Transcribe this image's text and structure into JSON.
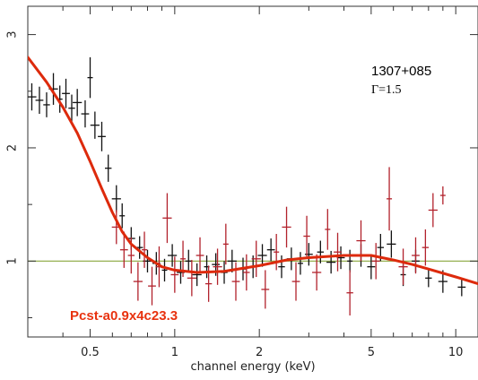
{
  "chart_data": {
    "type": "line",
    "title": "",
    "xlabel": "channel energy (keV)",
    "ylabel": "",
    "xscale": "log",
    "xlim": [
      0.3,
      12
    ],
    "ylim": [
      0.33,
      3.25
    ],
    "x_ticks": [
      {
        "value": 0.5,
        "label": "0.5"
      },
      {
        "value": 1,
        "label": "1"
      },
      {
        "value": 2,
        "label": "2"
      },
      {
        "value": 5,
        "label": "5"
      },
      {
        "value": 10,
        "label": "10"
      }
    ],
    "y_ticks": [
      {
        "value": 1,
        "label": "1"
      },
      {
        "value": 2,
        "label": "2"
      },
      {
        "value": 3,
        "label": "3"
      }
    ],
    "grid": false,
    "annotations": {
      "source": "1307+085",
      "gamma": "Γ=1.5",
      "model": "Pcst-a0.9x4c23.3"
    },
    "colors": {
      "model": "#dd2a0c",
      "reference": "#8aa63c",
      "data_black": "#111111",
      "data_red": "#b2222c"
    },
    "series": [
      {
        "type": "reference_line",
        "y": 1.0,
        "color": "#8aa63c"
      },
      {
        "type": "model_curve",
        "color": "#dd2a0c",
        "x": [
          0.3,
          0.35,
          0.4,
          0.45,
          0.5,
          0.55,
          0.6,
          0.65,
          0.7,
          0.8,
          0.9,
          1.0,
          1.2,
          1.5,
          2.0,
          2.5,
          3.0,
          4.0,
          5.0,
          6.0,
          7.0,
          8.0,
          10.0,
          12.0
        ],
        "y": [
          2.8,
          2.58,
          2.36,
          2.13,
          1.88,
          1.64,
          1.43,
          1.26,
          1.15,
          1.03,
          0.95,
          0.92,
          0.9,
          0.91,
          0.96,
          1.01,
          1.03,
          1.05,
          1.05,
          1.01,
          0.97,
          0.93,
          0.86,
          0.8
        ]
      },
      {
        "type": "data",
        "color": "#111111",
        "x": [
          0.31,
          0.33,
          0.35,
          0.37,
          0.39,
          0.41,
          0.43,
          0.45,
          0.48,
          0.5,
          0.52,
          0.55,
          0.58,
          0.62,
          0.65,
          0.7,
          0.75,
          0.8,
          0.86,
          0.92,
          0.98,
          1.05,
          1.12,
          1.2,
          1.3,
          1.4,
          1.5,
          1.6,
          1.75,
          1.9,
          2.05,
          2.2,
          2.4,
          2.6,
          2.8,
          3.0,
          3.3,
          3.6,
          3.9,
          4.2,
          4.6,
          5.0,
          5.4,
          5.9,
          6.5,
          7.2,
          8.0,
          9.0,
          10.5
        ],
        "y": [
          2.45,
          2.42,
          2.38,
          2.52,
          2.43,
          2.48,
          2.35,
          2.4,
          2.3,
          2.62,
          2.2,
          2.1,
          1.82,
          1.55,
          1.4,
          1.2,
          1.12,
          1.0,
          0.98,
          0.92,
          1.05,
          0.9,
          1.0,
          0.88,
          0.95,
          0.97,
          0.9,
          1.0,
          0.93,
          0.95,
          1.05,
          1.1,
          0.95,
          1.02,
          0.98,
          1.06,
          1.08,
          0.99,
          1.03,
          1.0,
          1.05,
          0.95,
          1.12,
          1.15,
          0.88,
          1.0,
          0.85,
          0.82,
          0.77
        ],
        "yerr": [
          0.12,
          0.12,
          0.11,
          0.14,
          0.12,
          0.13,
          0.12,
          0.12,
          0.12,
          0.18,
          0.12,
          0.13,
          0.12,
          0.12,
          0.11,
          0.1,
          0.1,
          0.1,
          0.1,
          0.1,
          0.1,
          0.1,
          0.1,
          0.1,
          0.1,
          0.1,
          0.1,
          0.1,
          0.1,
          0.1,
          0.1,
          0.1,
          0.1,
          0.1,
          0.1,
          0.1,
          0.1,
          0.1,
          0.1,
          0.1,
          0.1,
          0.11,
          0.12,
          0.12,
          0.1,
          0.1,
          0.08,
          0.1,
          0.08
        ]
      },
      {
        "type": "data",
        "color": "#b2222c",
        "x": [
          0.62,
          0.66,
          0.7,
          0.74,
          0.78,
          0.83,
          0.88,
          0.94,
          1.0,
          1.07,
          1.15,
          1.23,
          1.32,
          1.42,
          1.52,
          1.65,
          1.8,
          1.95,
          2.1,
          2.3,
          2.5,
          2.7,
          2.95,
          3.2,
          3.5,
          3.8,
          4.2,
          4.6,
          5.2,
          5.8,
          6.5,
          7.2,
          7.8,
          8.3,
          9.0
        ],
        "y": [
          1.3,
          1.1,
          1.05,
          0.82,
          1.1,
          0.78,
          0.95,
          1.38,
          0.88,
          1.02,
          0.85,
          1.05,
          0.8,
          0.95,
          1.15,
          0.82,
          0.9,
          1.02,
          0.75,
          1.08,
          1.3,
          0.82,
          1.22,
          0.9,
          1.28,
          1.08,
          0.72,
          1.18,
          1.0,
          1.55,
          0.95,
          1.05,
          1.12,
          1.45,
          1.58
        ],
        "yerr": [
          0.15,
          0.16,
          0.16,
          0.17,
          0.16,
          0.17,
          0.18,
          0.22,
          0.16,
          0.16,
          0.16,
          0.16,
          0.16,
          0.16,
          0.18,
          0.17,
          0.16,
          0.16,
          0.17,
          0.16,
          0.18,
          0.17,
          0.18,
          0.16,
          0.18,
          0.17,
          0.2,
          0.18,
          0.16,
          0.28,
          0.16,
          0.16,
          0.16,
          0.15,
          0.08
        ]
      }
    ]
  }
}
